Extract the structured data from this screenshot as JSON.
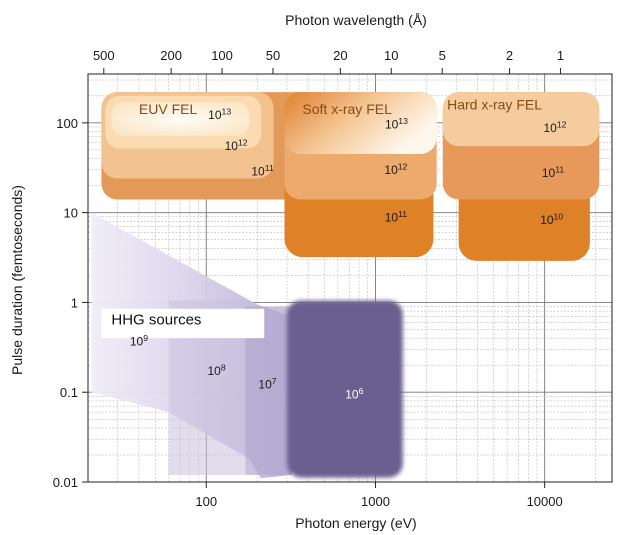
{
  "chart_data": {
    "type": "area",
    "title": "",
    "top_axis_label": "Photon wavelength (Å)",
    "top_ticks": [
      {
        "label": "500",
        "value": 500
      },
      {
        "label": "200",
        "value": 200
      },
      {
        "label": "100",
        "value": 100
      },
      {
        "label": "50",
        "value": 50
      },
      {
        "label": "20",
        "value": 20
      },
      {
        "label": "10",
        "value": 10
      },
      {
        "label": "5",
        "value": 5
      },
      {
        "label": "2",
        "value": 2
      },
      {
        "label": "1",
        "value": 1
      }
    ],
    "xlabel": "Photon energy (eV)",
    "ylabel": "Pulse duration (femtoseconds)",
    "x_scale": "log",
    "y_scale": "log",
    "xlim": [
      20,
      25000
    ],
    "ylim": [
      0.01,
      350
    ],
    "x_ticks": [
      {
        "label": "100",
        "value": 100
      },
      {
        "label": "1000",
        "value": 1000
      },
      {
        "label": "10000",
        "value": 10000
      }
    ],
    "y_ticks": [
      {
        "label": "100",
        "value": 100
      },
      {
        "label": "10",
        "value": 10
      },
      {
        "label": "1",
        "value": 1
      },
      {
        "label": "0.1",
        "value": 0.1
      },
      {
        "label": "0.01",
        "value": 0.01
      }
    ],
    "grid": true,
    "regions": [
      {
        "label": "EUV FEL",
        "group": "FEL",
        "color": "#f3bd89",
        "x_range": [
          24,
          300
        ],
        "y_range": [
          20,
          220
        ],
        "annotations": [
          {
            "text": "10",
            "sup": "13",
            "x": 120,
            "y": 110
          },
          {
            "text": "10",
            "sup": "12",
            "x": 150,
            "y": 50
          },
          {
            "text": "10",
            "sup": "11",
            "x": 215,
            "y": 26
          }
        ]
      },
      {
        "label": "Soft x-ray FEL",
        "group": "FEL",
        "color": "#e89847",
        "x_range": [
          290,
          2400
        ],
        "y_range": [
          4,
          220
        ],
        "annotations": [
          {
            "text": "10",
            "sup": "13",
            "x": 1330,
            "y": 86
          },
          {
            "text": "10",
            "sup": "12",
            "x": 1320,
            "y": 27
          },
          {
            "text": "10",
            "sup": "11",
            "x": 1320,
            "y": 8
          }
        ]
      },
      {
        "label": "Hard x-ray FEL",
        "group": "FEL",
        "color": "#e28d3a",
        "x_range": [
          2500,
          21000
        ],
        "y_range": [
          3,
          220
        ],
        "annotations": [
          {
            "text": "10",
            "sup": "12",
            "x": 11500,
            "y": 79
          },
          {
            "text": "10",
            "sup": "11",
            "x": 11200,
            "y": 25
          },
          {
            "text": "10",
            "sup": "10",
            "x": 11000,
            "y": 7.5
          }
        ]
      },
      {
        "label": "HHG sources",
        "group": "HHG",
        "color": "#6b5f8f",
        "annotations": [
          {
            "text": "10",
            "sup": "9",
            "x": 40,
            "y": 0.33
          },
          {
            "text": "10",
            "sup": "8",
            "x": 115,
            "y": 0.155
          },
          {
            "text": "10",
            "sup": "7",
            "x": 230,
            "y": 0.11
          },
          {
            "text": "10",
            "sup": "6",
            "x": 750,
            "y": 0.085,
            "color": "#ffffff"
          }
        ]
      }
    ]
  }
}
